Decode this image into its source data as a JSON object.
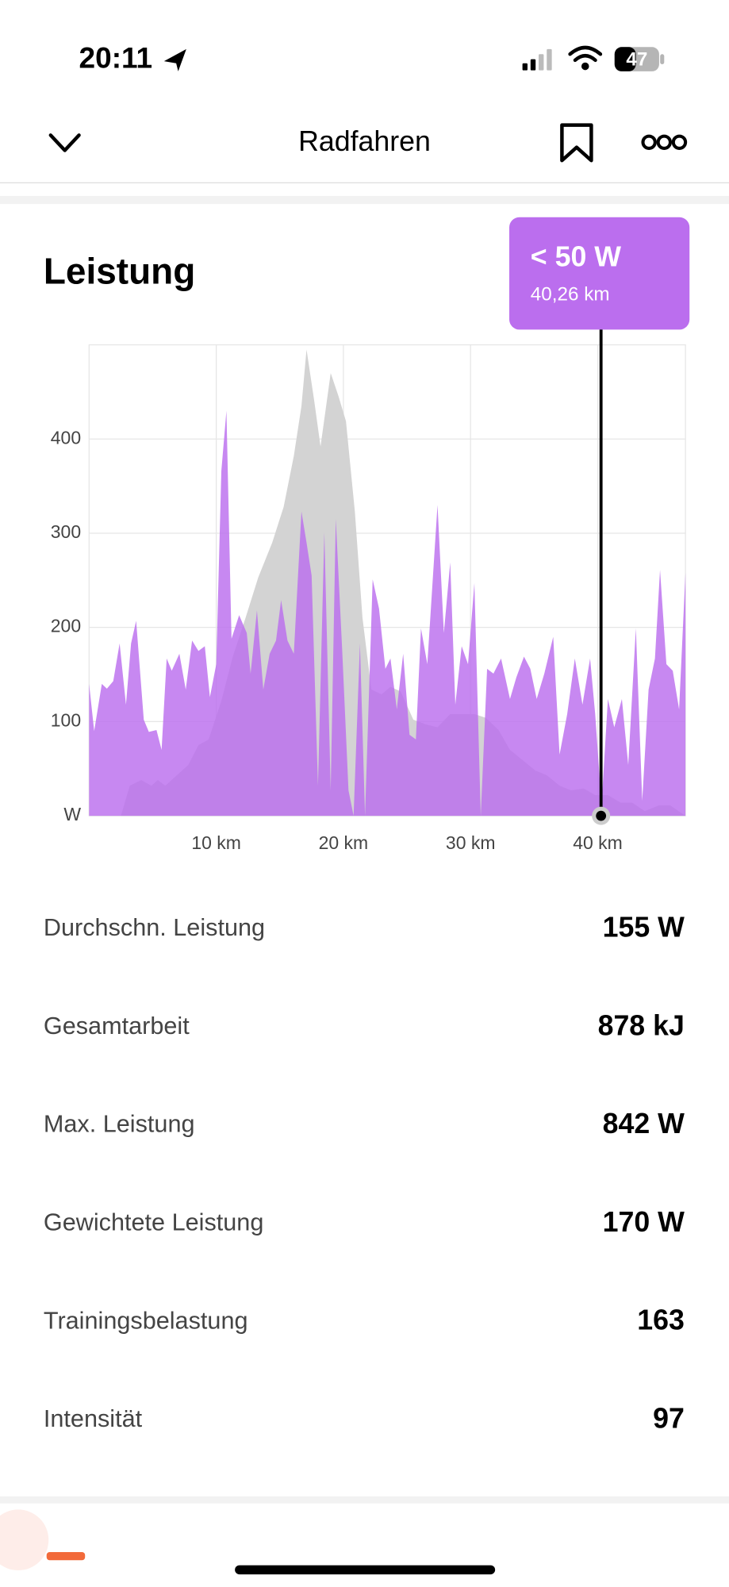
{
  "status_bar": {
    "time": "20:11",
    "battery": "47"
  },
  "header": {
    "title": "Radfahren"
  },
  "section": {
    "title": "Leistung"
  },
  "chart_data": {
    "type": "area",
    "xlim": [
      0,
      46.9
    ],
    "ylim": [
      0,
      500
    ],
    "xticks": [
      {
        "value": 10,
        "label": "10 km"
      },
      {
        "value": 20,
        "label": "20 km"
      },
      {
        "value": 30,
        "label": "30 km"
      },
      {
        "value": 40,
        "label": "40 km"
      }
    ],
    "yticks": [
      {
        "value": 0,
        "label": "W"
      },
      100,
      200,
      300,
      400
    ],
    "grid": true,
    "series": [
      {
        "color": "#d3d3d3",
        "x": [
          0,
          2.5,
          3.2,
          4.1,
          4.9,
          5.4,
          6,
          6.9,
          7.8,
          8.6,
          9.4,
          10.4,
          11.3,
          12.3,
          13.3,
          14.4,
          15.3,
          16.1,
          16.7,
          17.1,
          17.7,
          18.2,
          19,
          19.6,
          20.2,
          20.9,
          21.5,
          22.2,
          23,
          23.7,
          24.5,
          25.5,
          26.5,
          27.4,
          28.4,
          29.3,
          30.3,
          31.2,
          32.2,
          33.1,
          34.1,
          35.1,
          36,
          37,
          37.9,
          38.9,
          39.8,
          40.8,
          41.8,
          42.7,
          43.7,
          44.8,
          45.7,
          46.9
        ],
        "values": [
          0,
          0,
          32,
          38,
          32,
          38,
          32,
          43,
          54,
          75,
          81,
          122,
          169,
          210,
          253,
          290,
          328,
          382,
          435,
          495,
          441,
          392,
          470,
          446,
          419,
          323,
          210,
          134,
          129,
          137,
          132,
          102,
          97,
          94,
          108,
          108,
          108,
          104,
          91,
          70,
          59,
          48,
          43,
          32,
          27,
          29,
          22,
          22,
          14,
          14,
          5,
          11,
          11,
          0
        ]
      },
      {
        "color": "#bb6eee",
        "x": [
          0,
          0.4,
          1,
          1.4,
          1.9,
          2.4,
          2.9,
          3.3,
          3.7,
          4.3,
          4.7,
          5.3,
          5.7,
          6.1,
          6.5,
          7.1,
          7.6,
          8.1,
          8.6,
          9.1,
          9.5,
          10,
          10.4,
          10.8,
          11.2,
          11.8,
          12.4,
          12.7,
          13.2,
          13.7,
          14.2,
          14.7,
          15.1,
          15.6,
          16.1,
          16.7,
          17.1,
          17.5,
          18,
          18.5,
          19,
          19.4,
          19.9,
          20.4,
          20.8,
          21.3,
          21.7,
          22.3,
          22.8,
          23.3,
          23.7,
          24.2,
          24.7,
          25.2,
          25.7,
          26.1,
          26.6,
          27.4,
          27.9,
          28.4,
          28.8,
          29.3,
          29.8,
          30.3,
          30.8,
          31.3,
          31.8,
          32.4,
          33.1,
          33.6,
          34.2,
          34.7,
          35.2,
          35.8,
          36.5,
          37,
          37.6,
          38.2,
          38.8,
          39.4,
          39.8,
          40.3,
          40.8,
          41.3,
          41.9,
          42.4,
          43,
          43.5,
          44,
          44.5,
          44.9,
          45.4,
          45.9,
          46.4,
          46.9
        ],
        "values": [
          140,
          90,
          140,
          135,
          143,
          183,
          118,
          183,
          207,
          102,
          89,
          91,
          70,
          167,
          154,
          172,
          134,
          186,
          175,
          180,
          126,
          161,
          366,
          430,
          188,
          213,
          194,
          151,
          218,
          134,
          172,
          186,
          229,
          186,
          172,
          323,
          290,
          255,
          32,
          301,
          27,
          315,
          177,
          27,
          0,
          183,
          0,
          251,
          220,
          156,
          167,
          113,
          172,
          86,
          81,
          199,
          161,
          330,
          194,
          269,
          118,
          180,
          161,
          247,
          0,
          156,
          151,
          167,
          124,
          147,
          169,
          156,
          124,
          151,
          190,
          65,
          108,
          167,
          118,
          167,
          108,
          11,
          124,
          94,
          124,
          54,
          199,
          16,
          134,
          167,
          261,
          161,
          154,
          113,
          258
        ]
      }
    ],
    "tooltip": {
      "value": "< 50 W",
      "position": {
        "value": 40.26,
        "label": "40,26 km"
      }
    }
  },
  "stats": [
    {
      "label": "Durchschn. Leistung",
      "value": "155 W"
    },
    {
      "label": "Gesamtarbeit",
      "value": "878 kJ"
    },
    {
      "label": "Max. Leistung",
      "value": "842 W"
    },
    {
      "label": "Gewichtete Leistung",
      "value": "170 W"
    },
    {
      "label": "Trainingsbelastung",
      "value": "163"
    },
    {
      "label": "Intensität",
      "value": "97"
    }
  ]
}
